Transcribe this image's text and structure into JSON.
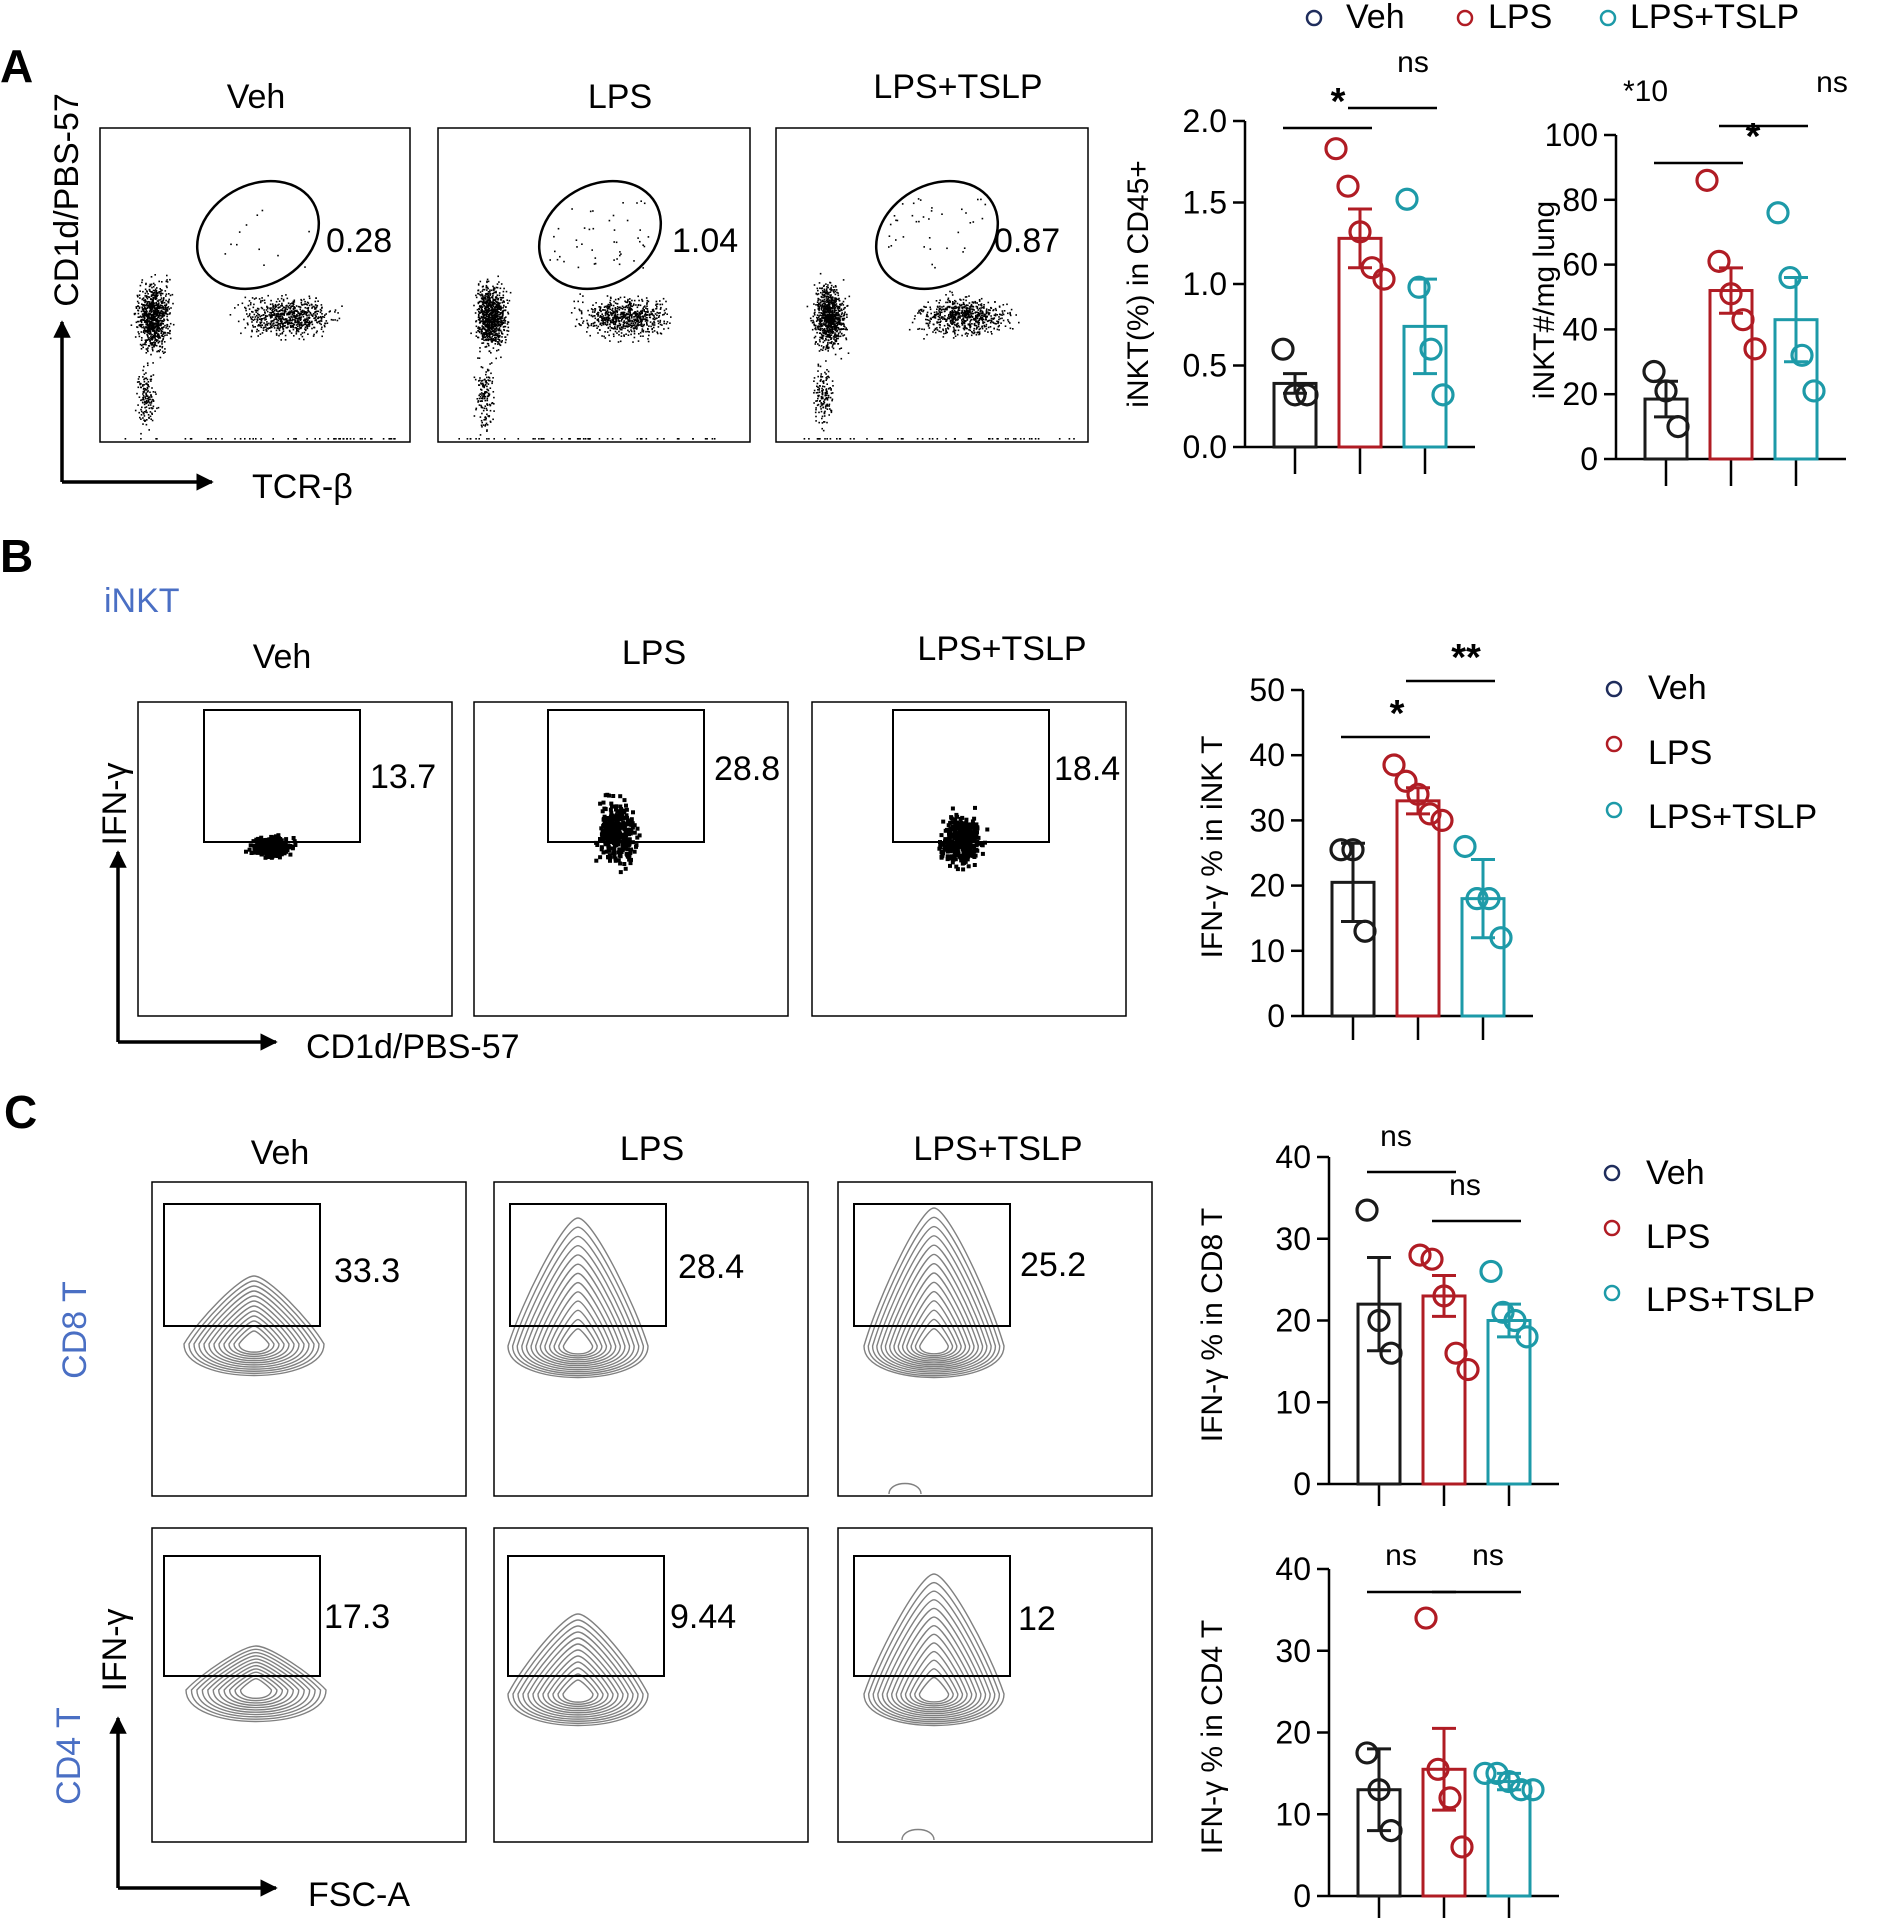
{
  "legend_top": {
    "items": [
      "Veh",
      "LPS",
      "LPS+TSLP"
    ]
  },
  "panels": {
    "A": {
      "letter": "A",
      "flow": {
        "titles": [
          "Veh",
          "LPS",
          "LPS+TSLP"
        ],
        "gate_values": [
          "0.28",
          "1.04",
          "0.87"
        ],
        "y_axis_label": "CD1d/PBS-57",
        "x_axis_label": "TCR-β"
      }
    },
    "B": {
      "letter": "B",
      "population": "iNKT",
      "flow": {
        "titles": [
          "Veh",
          "LPS",
          "LPS+TSLP"
        ],
        "gate_values": [
          "13.7",
          "28.8",
          "18.4"
        ],
        "y_axis_label": "IFN-γ",
        "x_axis_label": "CD1d/PBS-57"
      },
      "legend": {
        "items": [
          "Veh",
          "LPS",
          "LPS+TSLP"
        ]
      }
    },
    "C": {
      "letter": "C",
      "row_labels": [
        "CD8 T",
        "CD4 T"
      ],
      "flow_titles": [
        "Veh",
        "LPS",
        "LPS+TSLP"
      ],
      "cd8_gate_values": [
        "33.3",
        "28.4",
        "25.2"
      ],
      "cd4_gate_values": [
        "17.3",
        "9.44",
        "12"
      ],
      "y_axis_label": "IFN-γ",
      "x_axis_label": "FSC-A",
      "legend": {
        "items": [
          "Veh",
          "LPS",
          "LPS+TSLP"
        ]
      }
    }
  },
  "colors": {
    "veh": "#1a1a1a",
    "lps": "#b01c24",
    "tslp": "#1d9aa8",
    "legend_veh": "#1f2d5c",
    "accent_label": "#4a6fc4",
    "contour": "#808080"
  },
  "chart_data": [
    {
      "id": "A1",
      "type": "bar",
      "categories": [
        "Veh",
        "LPS",
        "LPS+TSLP"
      ],
      "ylabel": "iNKT(%) in CD45+",
      "ylim": [
        0,
        2.0
      ],
      "yticks": [
        "0.0",
        "0.5",
        "1.0",
        "1.5",
        "2.0"
      ],
      "means": [
        0.39,
        1.28,
        0.74
      ],
      "sem": [
        0.06,
        0.18,
        0.29
      ],
      "points": [
        [
          0.6,
          0.32,
          0.32
        ],
        [
          1.83,
          1.6,
          1.32,
          1.1,
          1.03
        ],
        [
          1.52,
          0.98,
          0.6,
          0.32
        ]
      ],
      "significance": [
        {
          "label": "*",
          "from": 0,
          "to": 1
        },
        {
          "label": "ns",
          "from": 1,
          "to": 2
        }
      ]
    },
    {
      "id": "A2",
      "type": "bar",
      "categories": [
        "Veh",
        "LPS",
        "LPS+TSLP"
      ],
      "ylabel": "iNKT#/mg lung",
      "scale_note": "*10",
      "ylim": [
        0,
        100
      ],
      "yticks": [
        "0",
        "20",
        "40",
        "60",
        "80",
        "100"
      ],
      "means": [
        18.5,
        52,
        43
      ],
      "sem": [
        5.5,
        7,
        13
      ],
      "points": [
        [
          27,
          21,
          10
        ],
        [
          86,
          61,
          51,
          43,
          34
        ],
        [
          76,
          56,
          32,
          21
        ]
      ],
      "significance": [
        {
          "label": "*",
          "from": 0,
          "to": 1
        },
        {
          "label": "ns",
          "from": 1,
          "to": 2
        }
      ]
    },
    {
      "id": "B1",
      "type": "bar",
      "categories": [
        "Veh",
        "LPS",
        "LPS+TSLP"
      ],
      "ylabel": "IFN-γ % in iNK T",
      "ylim": [
        0,
        50
      ],
      "yticks": [
        "0",
        "10",
        "20",
        "30",
        "40",
        "50"
      ],
      "means": [
        20.5,
        33,
        18
      ],
      "sem": [
        6,
        2,
        6
      ],
      "points": [
        [
          25.5,
          25.5,
          13
        ],
        [
          38.5,
          36,
          34,
          31,
          30
        ],
        [
          26,
          18,
          18,
          12
        ]
      ],
      "significance": [
        {
          "label": "*",
          "from": 0,
          "to": 1
        },
        {
          "label": "**",
          "from": 1,
          "to": 2
        }
      ]
    },
    {
      "id": "C1",
      "type": "bar",
      "categories": [
        "Veh",
        "LPS",
        "LPS+TSLP"
      ],
      "ylabel": "IFN-γ % in CD8 T",
      "ylim": [
        0,
        40
      ],
      "yticks": [
        "0",
        "10",
        "20",
        "30",
        "40"
      ],
      "means": [
        22,
        23,
        20
      ],
      "sem": [
        5.7,
        2.5,
        2
      ],
      "points": [
        [
          33.5,
          20,
          16
        ],
        [
          28,
          27.5,
          23,
          16,
          14
        ],
        [
          26,
          21,
          20,
          18
        ]
      ],
      "significance": [
        {
          "label": "ns",
          "from": 0,
          "to": 1
        },
        {
          "label": "ns",
          "from": 1,
          "to": 2
        }
      ]
    },
    {
      "id": "C2",
      "type": "bar",
      "categories": [
        "Veh",
        "LPS",
        "LPS+TSLP"
      ],
      "ylabel": "IFN-γ % in CD4 T",
      "ylim": [
        0,
        40
      ],
      "yticks": [
        "0",
        "10",
        "20",
        "30",
        "40"
      ],
      "means": [
        13,
        15.5,
        14
      ],
      "sem": [
        5,
        5,
        1
      ],
      "points": [
        [
          17.5,
          13,
          8
        ],
        [
          34,
          15.5,
          12,
          6
        ],
        [
          15,
          15,
          14,
          13,
          13
        ]
      ],
      "significance": [
        {
          "label": "ns",
          "from": 0,
          "to": 1
        },
        {
          "label": "ns",
          "from": 1,
          "to": 2
        }
      ]
    }
  ]
}
